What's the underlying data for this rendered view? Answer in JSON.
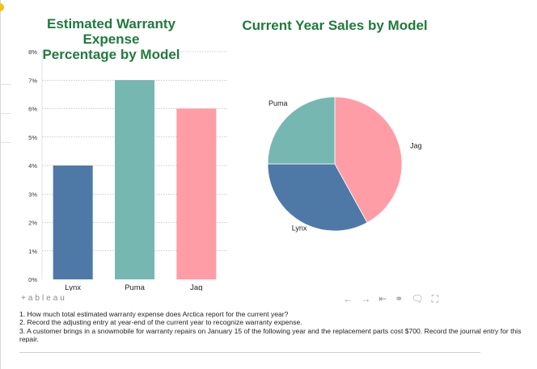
{
  "page": {
    "accent_color": "#1f7a3c",
    "colors": {
      "Lynx": "#4e79a7",
      "Puma": "#76b7b2",
      "Jag": "#ff9da7"
    }
  },
  "chart_data": [
    {
      "type": "bar",
      "title": "Estimated Warranty Expense Percentage by Model",
      "title_lines": [
        "Estimated Warranty Expense",
        "Percentage by Model"
      ],
      "categories": [
        "Lynx",
        "Puma",
        "Jag"
      ],
      "values": [
        4,
        7,
        6
      ],
      "unit": "%",
      "ylim": [
        0,
        8
      ],
      "yticks": [
        0,
        1,
        2,
        3,
        4,
        5,
        6,
        7,
        8
      ],
      "ytick_labels": [
        "0%",
        "1%",
        "2%",
        "3%",
        "4%",
        "5%",
        "6%",
        "7%",
        "8%"
      ],
      "xlabel": "",
      "ylabel": "",
      "grid": true
    },
    {
      "type": "pie",
      "title": "Current Year Sales by Model",
      "labels": [
        "Jag",
        "Lynx",
        "Puma"
      ],
      "values": [
        42,
        33,
        25
      ]
    }
  ],
  "toolbar": {
    "brand": "+ableau",
    "icons": [
      "undo-icon",
      "redo-icon",
      "revert-icon",
      "share-icon",
      "comment-icon",
      "fullscreen-icon"
    ],
    "glyphs": [
      "←",
      "→",
      "⇤",
      "⚭",
      "🗨",
      "⛶"
    ]
  },
  "questions": [
    "1. How much total estimated warranty expense does Arctica report for the current year?",
    "2. Record the adjusting entry at year-end of the current year to recognize warranty expense.",
    "3. A customer brings in a snowmobile for warranty repairs on January 15 of the following year and the replacement parts cost $700. Record the journal entry for this repair."
  ]
}
